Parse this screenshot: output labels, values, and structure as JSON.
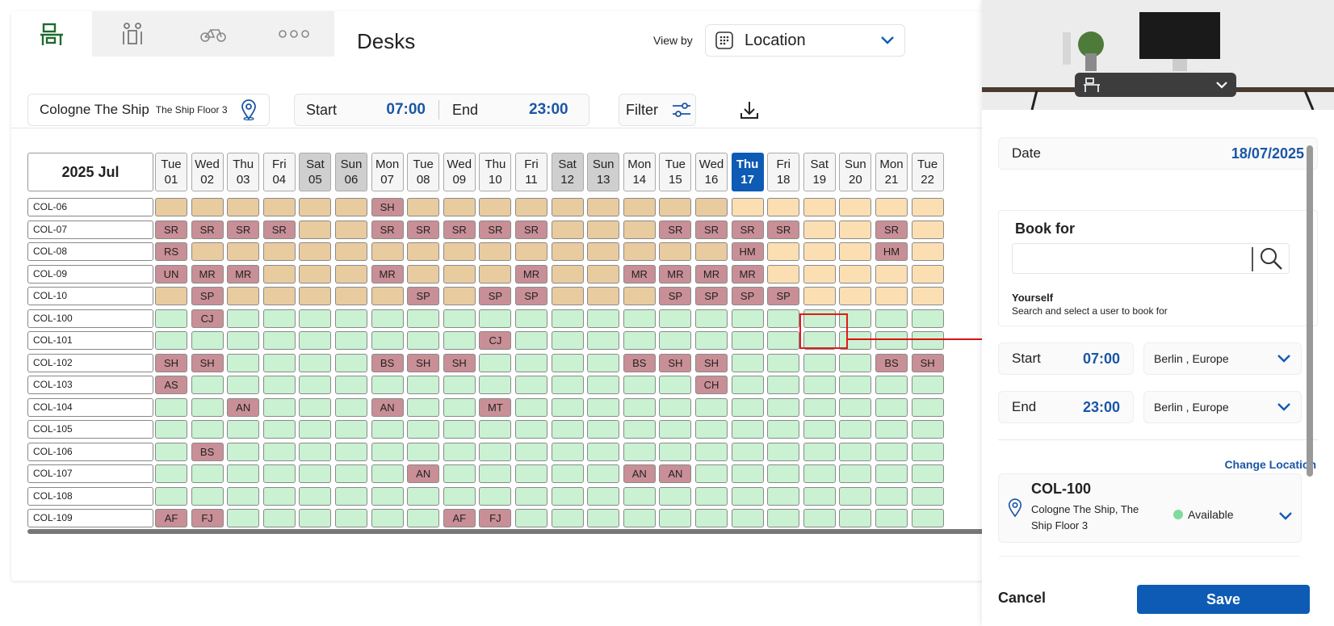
{
  "header": {
    "title": "Desks",
    "view_by_label": "View by",
    "view_by_value": "Location",
    "type_tabs": [
      "desk-icon",
      "meeting-room-icon",
      "bike-parking-icon",
      "more-icon"
    ]
  },
  "filters": {
    "location": "Cologne The Ship",
    "floor": "The Ship Floor 3",
    "start_label": "Start",
    "start_time": "07:00",
    "end_label": "End",
    "end_time": "23:00",
    "filter_label": "Filter"
  },
  "calendar": {
    "month_label": "2025 Jul",
    "days": [
      [
        "Tue",
        "01"
      ],
      [
        "Wed",
        "02"
      ],
      [
        "Thu",
        "03"
      ],
      [
        "Fri",
        "04"
      ],
      [
        "Sat",
        "05"
      ],
      [
        "Sun",
        "06"
      ],
      [
        "Mon",
        "07"
      ],
      [
        "Tue",
        "08"
      ],
      [
        "Wed",
        "09"
      ],
      [
        "Thu",
        "10"
      ],
      [
        "Fri",
        "11"
      ],
      [
        "Sat",
        "12"
      ],
      [
        "Sun",
        "13"
      ],
      [
        "Mon",
        "14"
      ],
      [
        "Tue",
        "15"
      ],
      [
        "Wed",
        "16"
      ],
      [
        "Thu",
        "17"
      ],
      [
        "Fri",
        "18"
      ],
      [
        "Sat",
        "19"
      ],
      [
        "Sun",
        "20"
      ],
      [
        "Mon",
        "21"
      ],
      [
        "Tue",
        "22"
      ]
    ],
    "weekend_days": [
      4,
      5,
      11,
      12
    ],
    "today_index": 16,
    "rows": [
      {
        "label": "COL-06",
        "cells": [
          "o",
          "o",
          "o",
          "o",
          "o",
          "o",
          "b:SH",
          "o",
          "o",
          "o",
          "o",
          "o",
          "o",
          "o",
          "o",
          "o",
          "lo",
          "lo",
          "lo",
          "lo",
          "lo",
          "lo"
        ]
      },
      {
        "label": "COL-07",
        "cells": [
          "b:SR",
          "b:SR",
          "b:SR",
          "b:SR",
          "o",
          "o",
          "b:SR",
          "b:SR",
          "b:SR",
          "b:SR",
          "b:SR",
          "o",
          "o",
          "o",
          "b:SR",
          "b:SR",
          "b:SR",
          "b:SR",
          "lo",
          "lo",
          "b:SR",
          "lo"
        ]
      },
      {
        "label": "COL-08",
        "cells": [
          "b:RS",
          "o",
          "o",
          "o",
          "o",
          "o",
          "o",
          "o",
          "o",
          "o",
          "o",
          "o",
          "o",
          "o",
          "o",
          "o",
          "b:HM",
          "lo",
          "lo",
          "lo",
          "b:HM",
          "lo"
        ]
      },
      {
        "label": "COL-09",
        "cells": [
          "b:UN",
          "b:MR",
          "b:MR",
          "o",
          "o",
          "o",
          "b:MR",
          "o",
          "o",
          "o",
          "b:MR",
          "o",
          "o",
          "b:MR",
          "b:MR",
          "b:MR",
          "b:MR",
          "lo",
          "lo",
          "lo",
          "lo",
          "lo"
        ]
      },
      {
        "label": "COL-10",
        "cells": [
          "o",
          "b:SP",
          "o",
          "o",
          "o",
          "o",
          "o",
          "b:SP",
          "o",
          "b:SP",
          "b:SP",
          "o",
          "o",
          "o",
          "b:SP",
          "b:SP",
          "b:SP",
          "b:SP",
          "lo",
          "lo",
          "lo",
          "lo"
        ]
      },
      {
        "label": "COL-100",
        "cells": [
          "g",
          "b:CJ",
          "g",
          "g",
          "g",
          "g",
          "g",
          "g",
          "g",
          "g",
          "g",
          "g",
          "g",
          "g",
          "g",
          "g",
          "g",
          "g",
          "g",
          "g",
          "g",
          "g"
        ]
      },
      {
        "label": "COL-101",
        "cells": [
          "g",
          "g",
          "g",
          "g",
          "g",
          "g",
          "g",
          "g",
          "g",
          "b:CJ",
          "g",
          "g",
          "g",
          "g",
          "g",
          "g",
          "g",
          "g",
          "g",
          "g",
          "g",
          "g"
        ]
      },
      {
        "label": "COL-102",
        "cells": [
          "b:SH",
          "b:SH",
          "g",
          "g",
          "g",
          "g",
          "b:BS",
          "b:SH",
          "b:SH",
          "g",
          "g",
          "g",
          "g",
          "b:BS",
          "b:SH",
          "b:SH",
          "g",
          "g",
          "g",
          "g",
          "b:BS",
          "b:SH"
        ]
      },
      {
        "label": "COL-103",
        "cells": [
          "b:AS",
          "g",
          "g",
          "g",
          "g",
          "g",
          "g",
          "g",
          "g",
          "g",
          "g",
          "g",
          "g",
          "g",
          "g",
          "b:CH",
          "g",
          "g",
          "g",
          "g",
          "g",
          "g"
        ]
      },
      {
        "label": "COL-104",
        "cells": [
          "g",
          "g",
          "b:AN",
          "g",
          "g",
          "g",
          "b:AN",
          "g",
          "g",
          "b:MT",
          "g",
          "g",
          "g",
          "g",
          "g",
          "g",
          "g",
          "g",
          "g",
          "g",
          "g",
          "g"
        ]
      },
      {
        "label": "COL-105",
        "cells": [
          "g",
          "g",
          "g",
          "g",
          "g",
          "g",
          "g",
          "g",
          "g",
          "g",
          "g",
          "g",
          "g",
          "g",
          "g",
          "g",
          "g",
          "g",
          "g",
          "g",
          "g",
          "g"
        ]
      },
      {
        "label": "COL-106",
        "cells": [
          "g",
          "b:BS",
          "g",
          "g",
          "g",
          "g",
          "g",
          "g",
          "g",
          "g",
          "g",
          "g",
          "g",
          "g",
          "g",
          "g",
          "g",
          "g",
          "g",
          "g",
          "g",
          "g"
        ]
      },
      {
        "label": "COL-107",
        "cells": [
          "g",
          "g",
          "g",
          "g",
          "g",
          "g",
          "g",
          "b:AN",
          "g",
          "g",
          "g",
          "g",
          "g",
          "b:AN",
          "b:AN",
          "g",
          "g",
          "g",
          "g",
          "g",
          "g",
          "g"
        ]
      },
      {
        "label": "COL-108",
        "cells": [
          "g",
          "g",
          "g",
          "g",
          "g",
          "g",
          "g",
          "g",
          "g",
          "g",
          "g",
          "g",
          "g",
          "g",
          "g",
          "g",
          "g",
          "g",
          "g",
          "g",
          "g",
          "g"
        ]
      },
      {
        "label": "COL-109",
        "cells": [
          "b:AF",
          "b:FJ",
          "g",
          "g",
          "g",
          "g",
          "g",
          "g",
          "b:AF",
          "b:FJ",
          "g",
          "g",
          "g",
          "g",
          "g",
          "g",
          "g",
          "g",
          "g",
          "g",
          "g",
          "g"
        ]
      }
    ]
  },
  "panel": {
    "date_label": "Date",
    "date_value": "18/07/2025",
    "book_for_label": "Book for",
    "book_for_value": "",
    "yourself_label": "Yourself",
    "yourself_hint": "Search and select a user to book for",
    "start_label": "Start",
    "start_time": "07:00",
    "start_tz": "Berlin , Europe",
    "end_label": "End",
    "end_time": "23:00",
    "end_tz": "Berlin , Europe",
    "change_location": "Change Location",
    "desk_name": "COL-100",
    "desk_location": "Cologne The Ship, The Ship Floor 3",
    "availability": "Available",
    "cancel": "Cancel",
    "save": "Save"
  },
  "colors": {
    "accent": "#0d5bb5",
    "booked": "#c98f97",
    "free": "#c9f1d2",
    "past_free": "#e9cba0",
    "future_free": "#fbdfb3"
  }
}
